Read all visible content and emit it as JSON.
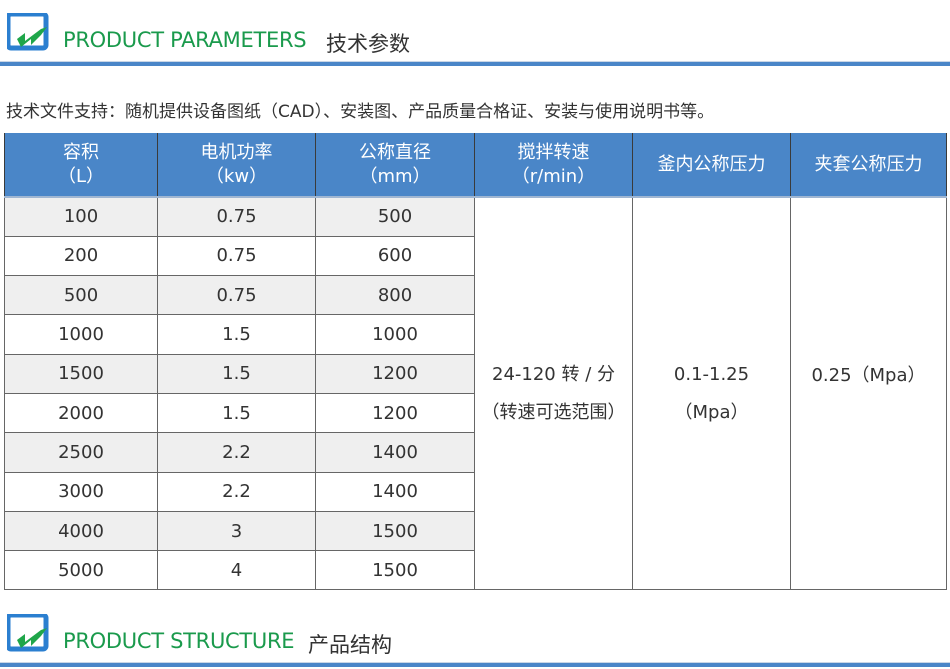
{
  "sections": [
    {
      "en": "PRODUCT PARAMETERS",
      "cn": "技术参数"
    },
    {
      "en": "PRODUCT STRUCTURE",
      "cn": "产品结构"
    }
  ],
  "note": "技术文件支持：随机提供设备图纸（CAD）、安装图、产品质量合格证、安装与使用说明书等。",
  "colors": {
    "header": "#4a86c8",
    "title_green": "#1a9a4c"
  },
  "table": {
    "headers": [
      {
        "l1": "容积",
        "l2": "（L）"
      },
      {
        "l1": "电机功率",
        "l2": "（kw）"
      },
      {
        "l1": "公称直径",
        "l2": "（mm）"
      },
      {
        "l1": "搅拌转速",
        "l2": "（r/min）"
      },
      {
        "l1": "釜内公称压力",
        "l2": ""
      },
      {
        "l1": "夹套公称压力",
        "l2": ""
      }
    ],
    "rows": [
      [
        "100",
        "0.75",
        "500"
      ],
      [
        "200",
        "0.75",
        "600"
      ],
      [
        "500",
        "0.75",
        "800"
      ],
      [
        "1000",
        "1.5",
        "1000"
      ],
      [
        "1500",
        "1.5",
        "1200"
      ],
      [
        "2000",
        "1.5",
        "1200"
      ],
      [
        "2500",
        "2.2",
        "1400"
      ],
      [
        "3000",
        "2.2",
        "1400"
      ],
      [
        "4000",
        "3",
        "1500"
      ],
      [
        "5000",
        "4",
        "1500"
      ]
    ],
    "speed": {
      "l1": "24-120 转 / 分",
      "l2": "（转速可选范围）"
    },
    "inner_pressure": {
      "l1": "0.1-1.25",
      "l2": "（Mpa）"
    },
    "jacket_pressure": "0.25（Mpa）"
  }
}
